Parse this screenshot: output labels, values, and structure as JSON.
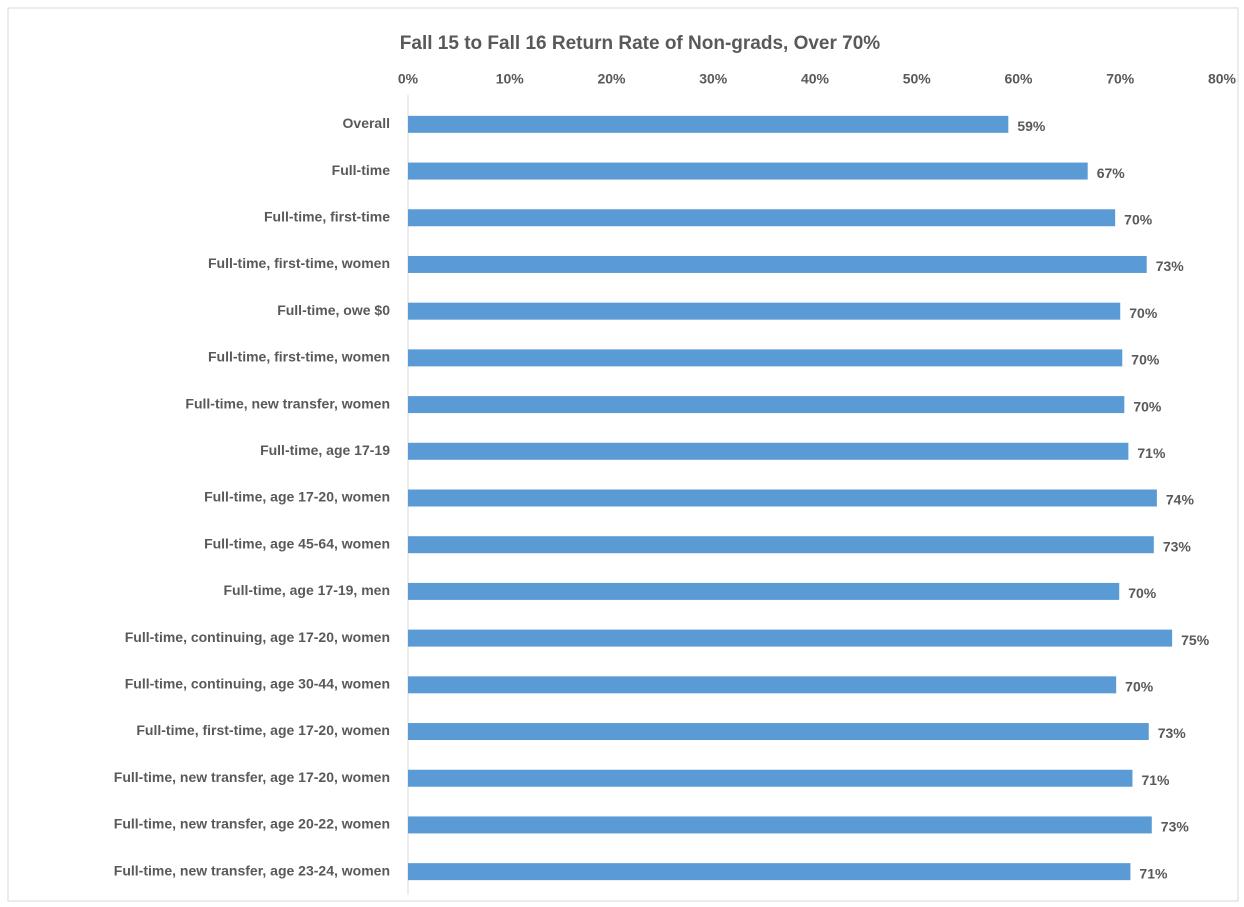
{
  "chart_data": {
    "type": "bar",
    "orientation": "horizontal",
    "title": "Fall 15 to Fall 16 Return Rate of Non-grads, Over 70%",
    "categories": [
      "Overall",
      "Full-time",
      "Full-time, first-time",
      "Full-time, first-time, women",
      "Full-time, owe $0",
      "Full-time, first-time, women",
      "Full-time, new transfer, women",
      "Full-time, age 17-19",
      "Full-time, age 17-20, women",
      "Full-time, age 45-64, women",
      "Full-time, age 17-19, men",
      "Full-time, continuing, age 17-20, women",
      "Full-time, continuing, age 30-44, women",
      "Full-time, first-time, age 17-20, women",
      "Full-time, new transfer, age 17-20, women",
      "Full-time, new transfer, age 20-22, women",
      "Full-time, new transfer, age 23-24, women"
    ],
    "values": [
      59.0,
      66.8,
      69.5,
      72.6,
      70.0,
      70.2,
      70.4,
      70.8,
      73.6,
      73.3,
      69.9,
      75.1,
      69.6,
      72.8,
      71.2,
      73.1,
      71.0
    ],
    "value_labels": [
      "59%",
      "67%",
      "70%",
      "73%",
      "70%",
      "70%",
      "70%",
      "71%",
      "74%",
      "73%",
      "70%",
      "75%",
      "70%",
      "73%",
      "71%",
      "73%",
      "71%"
    ],
    "color": "#5b9bd5",
    "xlim": [
      0,
      80
    ],
    "xticks": [
      {
        "value": 0,
        "label": "0%"
      },
      {
        "value": 10,
        "label": "10%"
      },
      {
        "value": 20,
        "label": "20%"
      },
      {
        "value": 30,
        "label": "30%"
      },
      {
        "value": 40,
        "label": "40%"
      },
      {
        "value": 50,
        "label": "50%"
      },
      {
        "value": 60,
        "label": "60%"
      },
      {
        "value": 70,
        "label": "70%"
      },
      {
        "value": 80,
        "label": "80%"
      }
    ],
    "grid": false
  }
}
